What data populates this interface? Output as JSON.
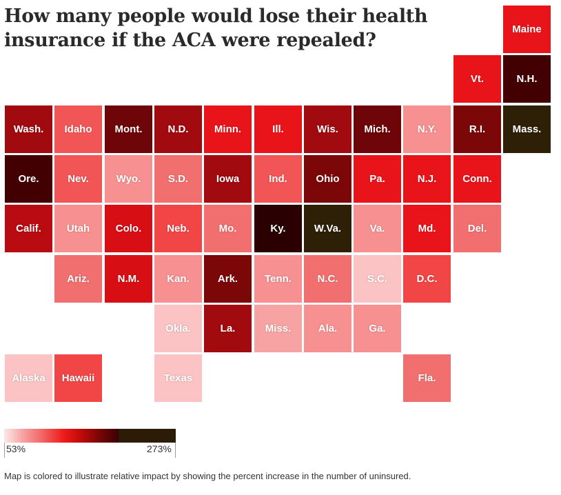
{
  "title": "How many people would lose their health insurance if the ACA were repealed?",
  "legend": {
    "min_label": "53%",
    "max_label": "273%"
  },
  "note": "Map is colored to illustrate relative impact by showing the percent increase in the number of uninsured.",
  "colors": {
    "lightest": "#fbc3c3",
    "light": "#f79090",
    "medium_light": "#f26f6f",
    "medium": "#f25555",
    "bright": "#e8141a",
    "red": "#c20e14",
    "dark": "#a10a0f",
    "darker": "#7c0709",
    "darkest_red": "#430003",
    "brown": "#2e1f07"
  },
  "map_data": {
    "type": "tile-grid",
    "metric": "percent increase in the number of uninsured",
    "tiles": [
      {
        "label": "Maine",
        "row": 0,
        "col": 10,
        "color": "#e8141a"
      },
      {
        "label": "Vt.",
        "row": 1,
        "col": 9,
        "color": "#e8141a"
      },
      {
        "label": "N.H.",
        "row": 1,
        "col": 10,
        "color": "#430003"
      },
      {
        "label": "Wash.",
        "row": 2,
        "col": 0,
        "color": "#a10a0f"
      },
      {
        "label": "Idaho",
        "row": 2,
        "col": 1,
        "color": "#f25555"
      },
      {
        "label": "Mont.",
        "row": 2,
        "col": 2,
        "color": "#6e0508"
      },
      {
        "label": "N.D.",
        "row": 2,
        "col": 3,
        "color": "#a10a0f"
      },
      {
        "label": "Minn.",
        "row": 2,
        "col": 4,
        "color": "#e8141a"
      },
      {
        "label": "Ill.",
        "row": 2,
        "col": 5,
        "color": "#e8141a"
      },
      {
        "label": "Wis.",
        "row": 2,
        "col": 6,
        "color": "#a10a0f"
      },
      {
        "label": "Mich.",
        "row": 2,
        "col": 7,
        "color": "#6e0508"
      },
      {
        "label": "N.Y.",
        "row": 2,
        "col": 8,
        "color": "#f79090"
      },
      {
        "label": "R.I.",
        "row": 2,
        "col": 9,
        "color": "#7c0709"
      },
      {
        "label": "Mass.",
        "row": 2,
        "col": 10,
        "color": "#2e1f07"
      },
      {
        "label": "Ore.",
        "row": 3,
        "col": 0,
        "color": "#430003"
      },
      {
        "label": "Nev.",
        "row": 3,
        "col": 1,
        "color": "#f25555"
      },
      {
        "label": "Wyo.",
        "row": 3,
        "col": 2,
        "color": "#f79090"
      },
      {
        "label": "S.D.",
        "row": 3,
        "col": 3,
        "color": "#f26f6f"
      },
      {
        "label": "Iowa",
        "row": 3,
        "col": 4,
        "color": "#a10a0f"
      },
      {
        "label": "Ind.",
        "row": 3,
        "col": 5,
        "color": "#f25555"
      },
      {
        "label": "Ohio",
        "row": 3,
        "col": 6,
        "color": "#7c0709"
      },
      {
        "label": "Pa.",
        "row": 3,
        "col": 7,
        "color": "#e8141a"
      },
      {
        "label": "N.J.",
        "row": 3,
        "col": 8,
        "color": "#e8141a"
      },
      {
        "label": "Conn.",
        "row": 3,
        "col": 9,
        "color": "#e8141a"
      },
      {
        "label": "Calif.",
        "row": 4,
        "col": 0,
        "color": "#b80b12"
      },
      {
        "label": "Utah",
        "row": 4,
        "col": 1,
        "color": "#f79090"
      },
      {
        "label": "Colo.",
        "row": 4,
        "col": 2,
        "color": "#d70e14"
      },
      {
        "label": "Neb.",
        "row": 4,
        "col": 3,
        "color": "#f24545"
      },
      {
        "label": "Mo.",
        "row": 4,
        "col": 4,
        "color": "#f26f6f"
      },
      {
        "label": "Ky.",
        "row": 4,
        "col": 5,
        "color": "#2a0003"
      },
      {
        "label": "W.Va.",
        "row": 4,
        "col": 6,
        "color": "#2e1f07"
      },
      {
        "label": "Va.",
        "row": 4,
        "col": 7,
        "color": "#f79090"
      },
      {
        "label": "Md.",
        "row": 4,
        "col": 8,
        "color": "#e8141a"
      },
      {
        "label": "Del.",
        "row": 4,
        "col": 9,
        "color": "#f26f6f"
      },
      {
        "label": "Ariz.",
        "row": 5,
        "col": 1,
        "color": "#f26f6f"
      },
      {
        "label": "N.M.",
        "row": 5,
        "col": 2,
        "color": "#d70e14"
      },
      {
        "label": "Kan.",
        "row": 5,
        "col": 3,
        "color": "#f79090"
      },
      {
        "label": "Ark.",
        "row": 5,
        "col": 4,
        "color": "#7c0709"
      },
      {
        "label": "Tenn.",
        "row": 5,
        "col": 5,
        "color": "#f79090"
      },
      {
        "label": "N.C.",
        "row": 5,
        "col": 6,
        "color": "#f26f6f"
      },
      {
        "label": "S.C.",
        "row": 5,
        "col": 7,
        "color": "#fbc3c3"
      },
      {
        "label": "D.C.",
        "row": 5,
        "col": 8,
        "color": "#f24545"
      },
      {
        "label": "Okla.",
        "row": 6,
        "col": 3,
        "color": "#fbc3c3"
      },
      {
        "label": "La.",
        "row": 6,
        "col": 4,
        "color": "#a10a0f"
      },
      {
        "label": "Miss.",
        "row": 6,
        "col": 5,
        "color": "#f7a3a3"
      },
      {
        "label": "Ala.",
        "row": 6,
        "col": 6,
        "color": "#f79090"
      },
      {
        "label": "Ga.",
        "row": 6,
        "col": 7,
        "color": "#f79090"
      },
      {
        "label": "Alaska",
        "row": 7,
        "col": 0,
        "color": "#fbc3c3"
      },
      {
        "label": "Hawaii",
        "row": 7,
        "col": 1,
        "color": "#f24545"
      },
      {
        "label": "Texas",
        "row": 7,
        "col": 3,
        "color": "#fbc3c3"
      },
      {
        "label": "Fla.",
        "row": 7,
        "col": 8,
        "color": "#f26f6f"
      }
    ]
  }
}
